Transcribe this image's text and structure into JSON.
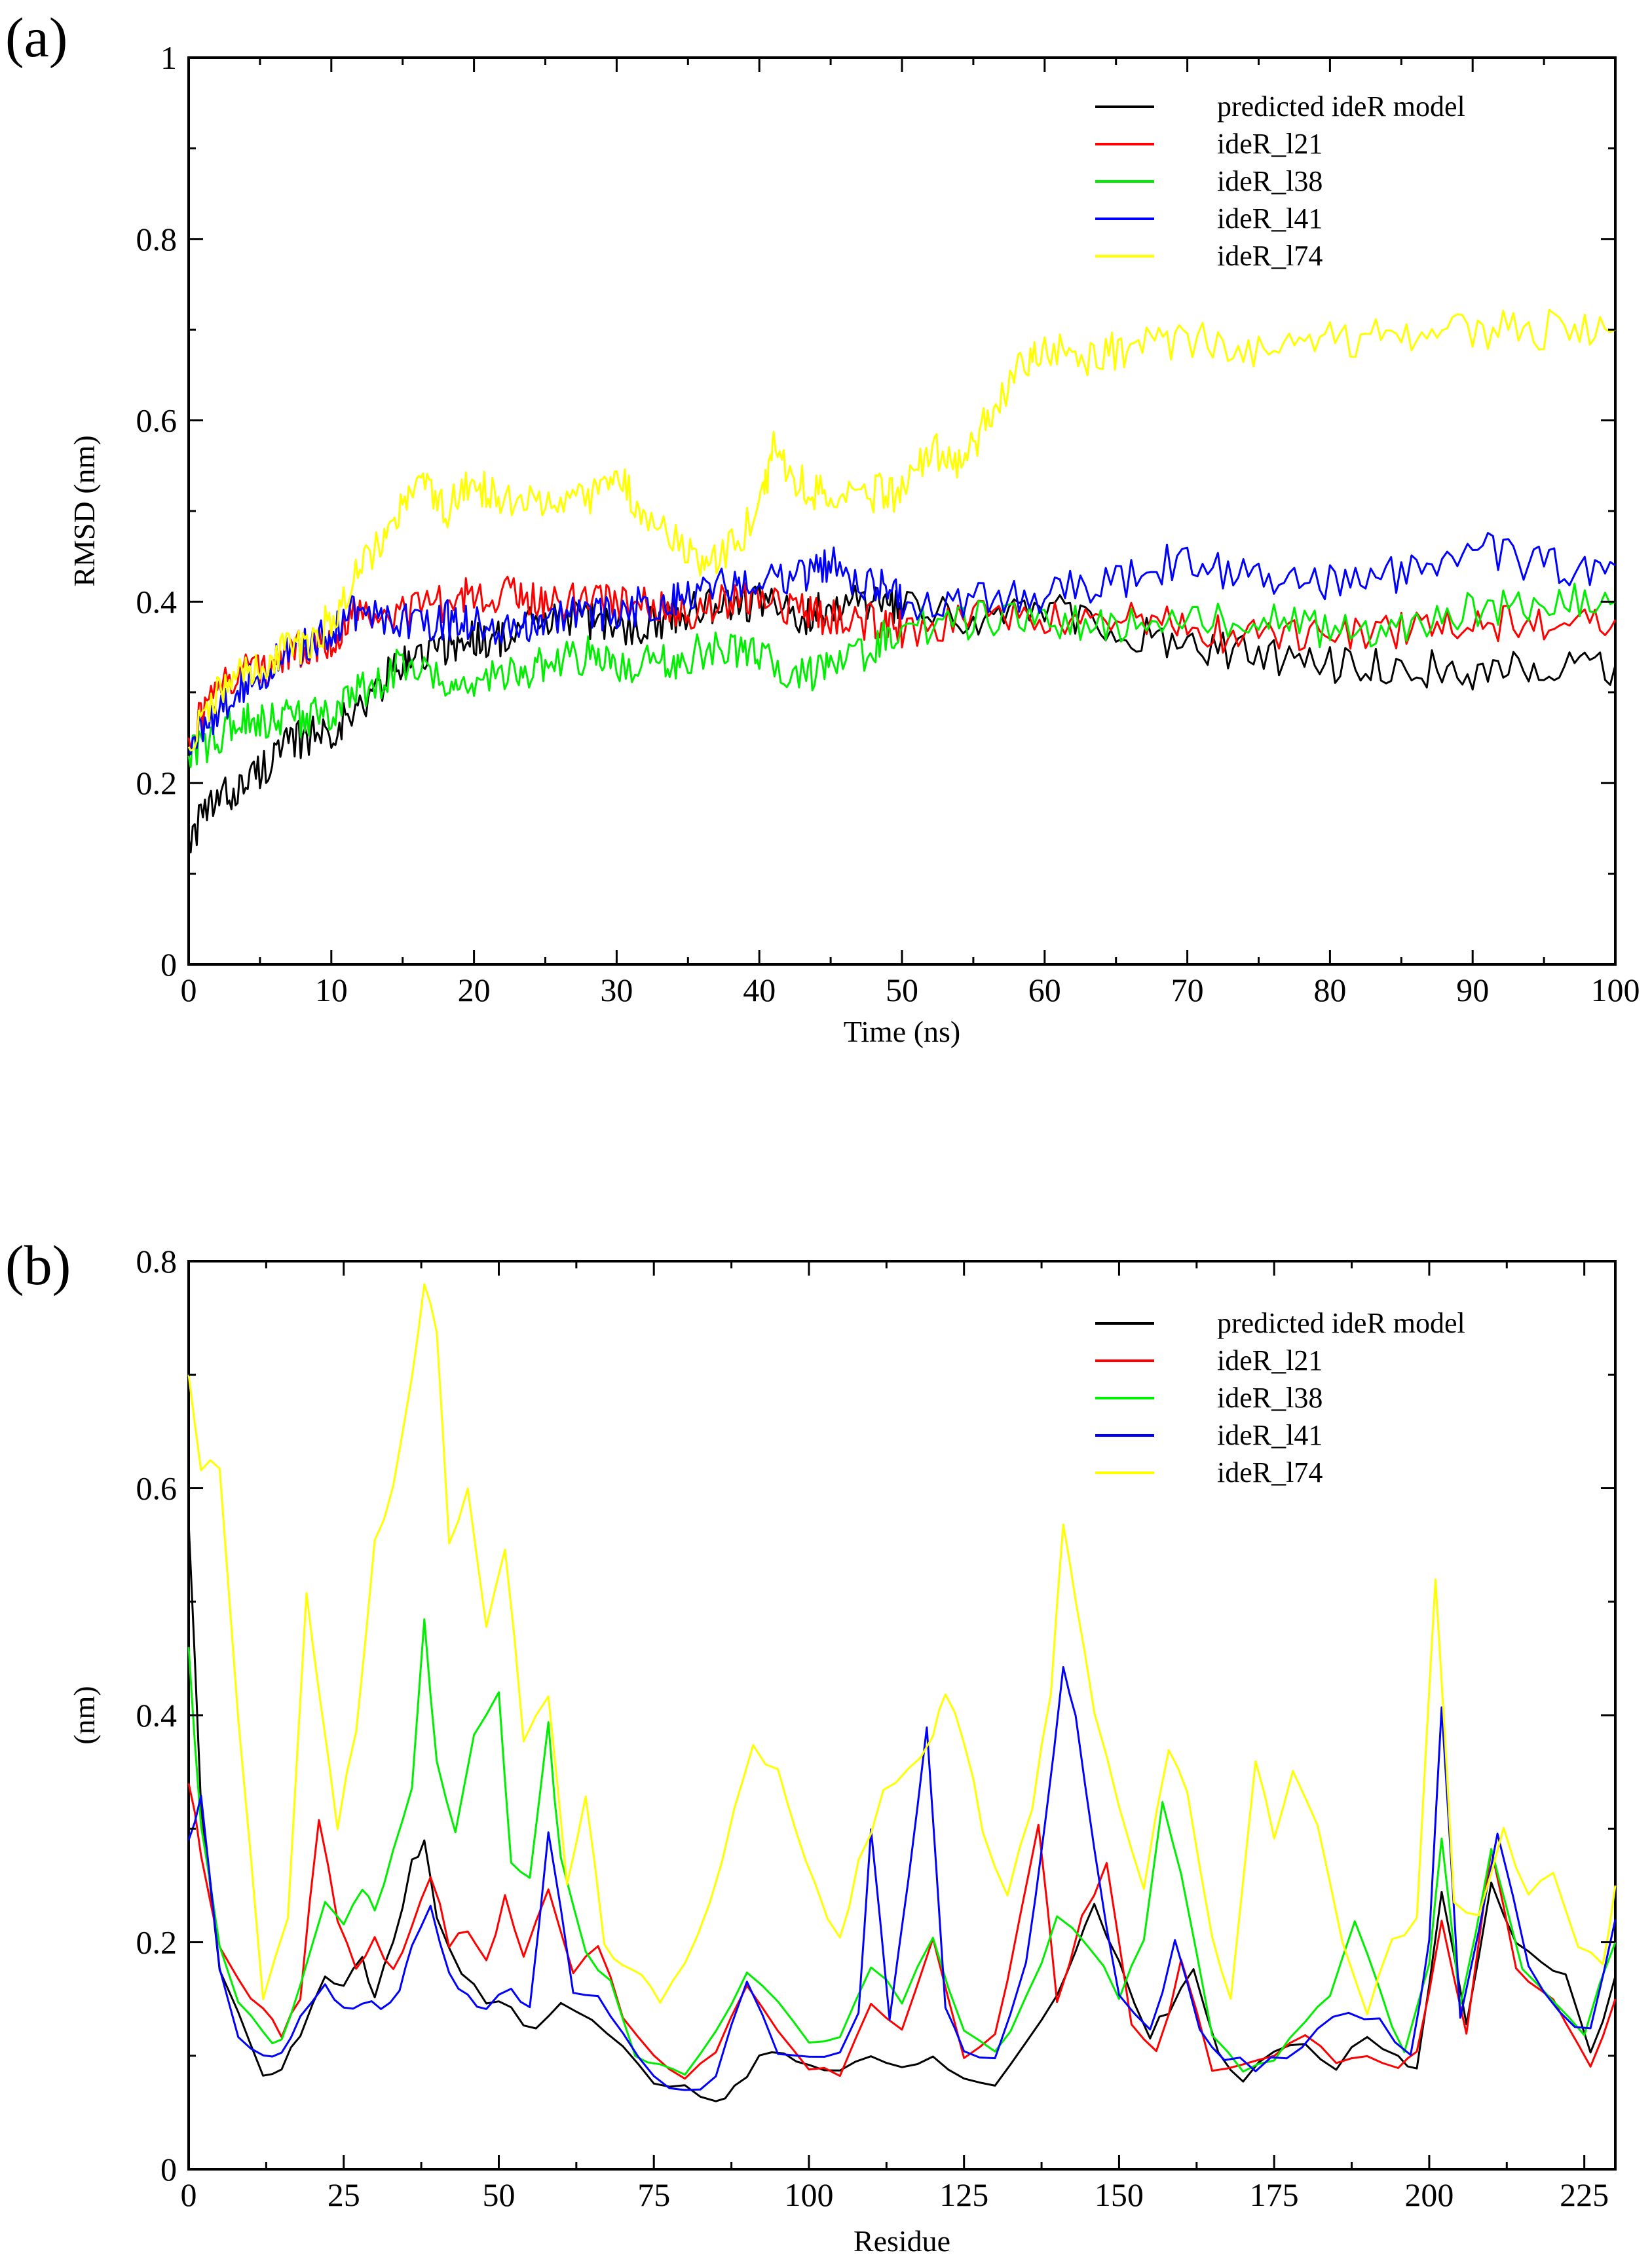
{
  "chart_data": [
    {
      "type": "line",
      "panel_label": "(a)",
      "title": "",
      "xlabel": "Time (ns)",
      "ylabel": "RMSD (nm)",
      "xlim": [
        0,
        100
      ],
      "ylim": [
        0,
        1
      ],
      "xticks": [
        0,
        10,
        20,
        30,
        40,
        50,
        60,
        70,
        80,
        90,
        100
      ],
      "yticks": [
        0,
        0.2,
        0.4,
        0.6,
        0.8,
        1
      ],
      "xtick_labels": [
        "0",
        "10",
        "20",
        "30",
        "40",
        "50",
        "60",
        "70",
        "80",
        "90",
        "100"
      ],
      "ytick_labels": [
        "0",
        "0.2",
        "0.4",
        "0.6",
        "0.8",
        "1"
      ],
      "grid": false,
      "legend_position": "top-right",
      "series": [
        {
          "name": "predicted ideR model",
          "color": "#000000",
          "x": [
            0,
            2,
            4,
            6,
            8,
            10,
            12,
            14,
            16,
            18,
            20,
            22,
            25,
            28,
            30,
            33,
            35,
            38,
            40,
            43,
            45,
            48,
            50,
            55,
            60,
            65,
            70,
            75,
            80,
            85,
            90,
            95,
            100
          ],
          "y": [
            0.14,
            0.18,
            0.2,
            0.23,
            0.25,
            0.26,
            0.28,
            0.32,
            0.34,
            0.35,
            0.36,
            0.36,
            0.38,
            0.38,
            0.37,
            0.38,
            0.39,
            0.4,
            0.4,
            0.38,
            0.4,
            0.4,
            0.39,
            0.38,
            0.39,
            0.37,
            0.35,
            0.34,
            0.33,
            0.33,
            0.32,
            0.33,
            0.33
          ]
        },
        {
          "name": "ideR_l21",
          "color": "#ff0000",
          "x": [
            0,
            2,
            4,
            6,
            8,
            10,
            12,
            15,
            18,
            20,
            23,
            25,
            28,
            30,
            33,
            35,
            38,
            40,
            43,
            45,
            48,
            50,
            55,
            60,
            65,
            70,
            75,
            80,
            85,
            90,
            95,
            100
          ],
          "y": [
            0.25,
            0.3,
            0.33,
            0.33,
            0.35,
            0.36,
            0.39,
            0.39,
            0.4,
            0.41,
            0.41,
            0.4,
            0.4,
            0.4,
            0.4,
            0.39,
            0.4,
            0.41,
            0.39,
            0.38,
            0.38,
            0.37,
            0.38,
            0.38,
            0.38,
            0.37,
            0.36,
            0.36,
            0.37,
            0.38,
            0.37,
            0.38
          ]
        },
        {
          "name": "ideR_l38",
          "color": "#00ee00",
          "x": [
            0,
            2,
            4,
            6,
            8,
            10,
            12,
            15,
            18,
            20,
            23,
            25,
            28,
            30,
            33,
            35,
            38,
            40,
            43,
            45,
            48,
            50,
            55,
            60,
            65,
            70,
            75,
            80,
            85,
            90,
            95,
            100
          ],
          "y": [
            0.23,
            0.25,
            0.27,
            0.27,
            0.27,
            0.28,
            0.3,
            0.33,
            0.31,
            0.31,
            0.32,
            0.33,
            0.34,
            0.33,
            0.33,
            0.34,
            0.35,
            0.34,
            0.32,
            0.33,
            0.35,
            0.37,
            0.38,
            0.38,
            0.37,
            0.38,
            0.38,
            0.37,
            0.37,
            0.39,
            0.4,
            0.4
          ]
        },
        {
          "name": "ideR_l41",
          "color": "#0000ff",
          "x": [
            0,
            2,
            4,
            6,
            8,
            10,
            12,
            15,
            18,
            20,
            23,
            25,
            28,
            30,
            33,
            35,
            38,
            40,
            43,
            45,
            48,
            50,
            55,
            60,
            65,
            70,
            75,
            80,
            85,
            90,
            95,
            100
          ],
          "y": [
            0.24,
            0.28,
            0.31,
            0.33,
            0.35,
            0.37,
            0.39,
            0.38,
            0.38,
            0.38,
            0.37,
            0.38,
            0.39,
            0.39,
            0.4,
            0.41,
            0.42,
            0.43,
            0.43,
            0.44,
            0.42,
            0.4,
            0.4,
            0.41,
            0.42,
            0.45,
            0.42,
            0.42,
            0.43,
            0.46,
            0.44,
            0.44
          ]
        },
        {
          "name": "ideR_l74",
          "color": "#ffff00",
          "x": [
            0,
            2,
            4,
            6,
            8,
            10,
            12,
            14,
            16,
            18,
            20,
            22,
            25,
            28,
            30,
            32,
            35,
            37,
            40,
            41,
            43,
            45,
            48,
            50,
            52,
            54,
            56,
            58,
            60,
            63,
            66,
            70,
            75,
            80,
            85,
            90,
            95,
            100
          ],
          "y": [
            0.24,
            0.3,
            0.32,
            0.34,
            0.35,
            0.38,
            0.44,
            0.48,
            0.53,
            0.5,
            0.53,
            0.51,
            0.51,
            0.51,
            0.54,
            0.5,
            0.45,
            0.44,
            0.5,
            0.57,
            0.53,
            0.51,
            0.52,
            0.52,
            0.57,
            0.55,
            0.6,
            0.65,
            0.68,
            0.67,
            0.68,
            0.69,
            0.68,
            0.69,
            0.69,
            0.7,
            0.7,
            0.7
          ]
        }
      ]
    },
    {
      "type": "line",
      "panel_label": "(b)",
      "title": "",
      "xlabel": "Residue",
      "ylabel": "(nm)",
      "xlim": [
        0,
        230
      ],
      "ylim": [
        0,
        0.8
      ],
      "xticks": [
        0,
        25,
        50,
        75,
        100,
        125,
        150,
        175,
        200,
        225
      ],
      "yticks": [
        0,
        0.2,
        0.4,
        0.6,
        0.8
      ],
      "xtick_labels": [
        "0",
        "25",
        "50",
        "75",
        "100",
        "125",
        "150",
        "175",
        "200",
        "225"
      ],
      "ytick_labels": [
        "0",
        "0.2",
        "0.4",
        "0.6",
        "0.8"
      ],
      "grid": false,
      "legend_position": "top-right",
      "series": [
        {
          "name": "predicted ideR model",
          "color": "#000000",
          "x": [
            0,
            2,
            5,
            8,
            12,
            15,
            18,
            22,
            25,
            28,
            30,
            33,
            36,
            38,
            40,
            44,
            48,
            52,
            56,
            60,
            65,
            70,
            75,
            80,
            85,
            88,
            92,
            96,
            100,
            105,
            110,
            115,
            120,
            125,
            130,
            135,
            140,
            143,
            146,
            150,
            155,
            158,
            162,
            166,
            170,
            175,
            180,
            185,
            190,
            195,
            198,
            202,
            206,
            210,
            214,
            218,
            222,
            226,
            230
          ],
          "y": [
            0.57,
            0.32,
            0.18,
            0.14,
            0.08,
            0.09,
            0.12,
            0.17,
            0.16,
            0.19,
            0.15,
            0.2,
            0.27,
            0.29,
            0.22,
            0.17,
            0.15,
            0.14,
            0.12,
            0.15,
            0.13,
            0.11,
            0.08,
            0.07,
            0.06,
            0.07,
            0.1,
            0.1,
            0.09,
            0.09,
            0.1,
            0.09,
            0.1,
            0.08,
            0.07,
            0.11,
            0.15,
            0.19,
            0.23,
            0.18,
            0.12,
            0.14,
            0.18,
            0.1,
            0.08,
            0.1,
            0.11,
            0.09,
            0.12,
            0.1,
            0.09,
            0.24,
            0.13,
            0.25,
            0.2,
            0.18,
            0.17,
            0.1,
            0.17
          ]
        },
        {
          "name": "ideR_l21",
          "color": "#ff0000",
          "x": [
            0,
            2,
            5,
            8,
            12,
            15,
            18,
            21,
            24,
            27,
            30,
            33,
            36,
            39,
            42,
            45,
            48,
            51,
            54,
            58,
            62,
            66,
            70,
            75,
            80,
            85,
            90,
            95,
            100,
            105,
            110,
            115,
            120,
            125,
            130,
            134,
            137,
            140,
            144,
            148,
            152,
            156,
            160,
            165,
            170,
            175,
            180,
            185,
            190,
            195,
            198,
            202,
            206,
            210,
            214,
            218,
            222,
            226,
            230
          ],
          "y": [
            0.34,
            0.28,
            0.2,
            0.17,
            0.14,
            0.12,
            0.15,
            0.31,
            0.22,
            0.18,
            0.2,
            0.18,
            0.21,
            0.26,
            0.2,
            0.21,
            0.18,
            0.24,
            0.19,
            0.25,
            0.17,
            0.2,
            0.13,
            0.1,
            0.08,
            0.1,
            0.16,
            0.12,
            0.09,
            0.08,
            0.15,
            0.12,
            0.2,
            0.1,
            0.12,
            0.22,
            0.3,
            0.15,
            0.22,
            0.27,
            0.13,
            0.1,
            0.18,
            0.09,
            0.09,
            0.1,
            0.12,
            0.09,
            0.1,
            0.09,
            0.1,
            0.22,
            0.12,
            0.28,
            0.18,
            0.16,
            0.13,
            0.09,
            0.15
          ]
        },
        {
          "name": "ideR_l38",
          "color": "#00ee00",
          "x": [
            0,
            2,
            5,
            8,
            12,
            15,
            18,
            22,
            25,
            28,
            30,
            33,
            36,
            38,
            40,
            43,
            46,
            50,
            52,
            55,
            58,
            60,
            64,
            68,
            72,
            76,
            80,
            85,
            90,
            95,
            100,
            105,
            110,
            115,
            120,
            125,
            130,
            135,
            140,
            145,
            150,
            154,
            157,
            160,
            165,
            170,
            175,
            180,
            184,
            188,
            192,
            196,
            200,
            202,
            205,
            210,
            215,
            220,
            225,
            230
          ],
          "y": [
            0.46,
            0.3,
            0.2,
            0.15,
            0.12,
            0.11,
            0.16,
            0.24,
            0.22,
            0.25,
            0.23,
            0.28,
            0.34,
            0.48,
            0.36,
            0.3,
            0.38,
            0.42,
            0.27,
            0.26,
            0.39,
            0.27,
            0.19,
            0.17,
            0.1,
            0.09,
            0.08,
            0.12,
            0.17,
            0.15,
            0.11,
            0.12,
            0.18,
            0.15,
            0.2,
            0.12,
            0.1,
            0.15,
            0.22,
            0.2,
            0.15,
            0.2,
            0.32,
            0.26,
            0.12,
            0.09,
            0.1,
            0.13,
            0.15,
            0.22,
            0.16,
            0.1,
            0.18,
            0.29,
            0.14,
            0.28,
            0.18,
            0.15,
            0.12,
            0.2
          ]
        },
        {
          "name": "ideR_l41",
          "color": "#0000ff",
          "x": [
            0,
            2,
            5,
            8,
            12,
            15,
            18,
            22,
            25,
            28,
            31,
            34,
            36,
            39,
            42,
            45,
            48,
            52,
            55,
            58,
            62,
            66,
            70,
            75,
            80,
            85,
            90,
            95,
            100,
            105,
            108,
            110,
            113,
            116,
            119,
            122,
            125,
            130,
            135,
            138,
            141,
            143,
            146,
            150,
            155,
            159,
            163,
            167,
            172,
            177,
            182,
            187,
            192,
            197,
            200,
            202,
            205,
            211,
            216,
            221,
            226,
            230
          ],
          "y": [
            0.29,
            0.33,
            0.18,
            0.12,
            0.1,
            0.1,
            0.13,
            0.16,
            0.14,
            0.15,
            0.14,
            0.16,
            0.2,
            0.23,
            0.17,
            0.15,
            0.14,
            0.16,
            0.14,
            0.3,
            0.16,
            0.15,
            0.12,
            0.08,
            0.07,
            0.08,
            0.17,
            0.1,
            0.1,
            0.1,
            0.14,
            0.3,
            0.13,
            0.25,
            0.39,
            0.14,
            0.1,
            0.1,
            0.18,
            0.3,
            0.44,
            0.4,
            0.28,
            0.15,
            0.12,
            0.2,
            0.12,
            0.1,
            0.09,
            0.1,
            0.12,
            0.14,
            0.13,
            0.1,
            0.2,
            0.41,
            0.13,
            0.3,
            0.18,
            0.14,
            0.12,
            0.22
          ]
        },
        {
          "name": "ideR_l74",
          "color": "#ffff00",
          "x": [
            0,
            2,
            5,
            8,
            12,
            16,
            19,
            21,
            24,
            27,
            30,
            33,
            36,
            38,
            40,
            42,
            45,
            48,
            51,
            54,
            58,
            61,
            64,
            67,
            70,
            73,
            76,
            80,
            84,
            88,
            91,
            95,
            98,
            101,
            105,
            108,
            112,
            116,
            120,
            122,
            125,
            128,
            132,
            136,
            139,
            141,
            143,
            146,
            150,
            154,
            158,
            161,
            165,
            168,
            172,
            175,
            178,
            182,
            186,
            190,
            194,
            198,
            201,
            204,
            208,
            212,
            216,
            220,
            224,
            228,
            230
          ],
          "y": [
            0.7,
            0.62,
            0.62,
            0.4,
            0.15,
            0.22,
            0.51,
            0.42,
            0.3,
            0.39,
            0.55,
            0.6,
            0.7,
            0.78,
            0.74,
            0.55,
            0.6,
            0.48,
            0.55,
            0.38,
            0.42,
            0.25,
            0.33,
            0.2,
            0.18,
            0.17,
            0.15,
            0.18,
            0.23,
            0.32,
            0.37,
            0.35,
            0.3,
            0.25,
            0.2,
            0.27,
            0.33,
            0.35,
            0.38,
            0.42,
            0.38,
            0.3,
            0.24,
            0.32,
            0.42,
            0.57,
            0.5,
            0.4,
            0.32,
            0.25,
            0.37,
            0.33,
            0.2,
            0.15,
            0.36,
            0.29,
            0.35,
            0.3,
            0.2,
            0.14,
            0.2,
            0.22,
            0.52,
            0.24,
            0.22,
            0.3,
            0.24,
            0.26,
            0.2,
            0.18,
            0.25
          ]
        }
      ]
    }
  ]
}
